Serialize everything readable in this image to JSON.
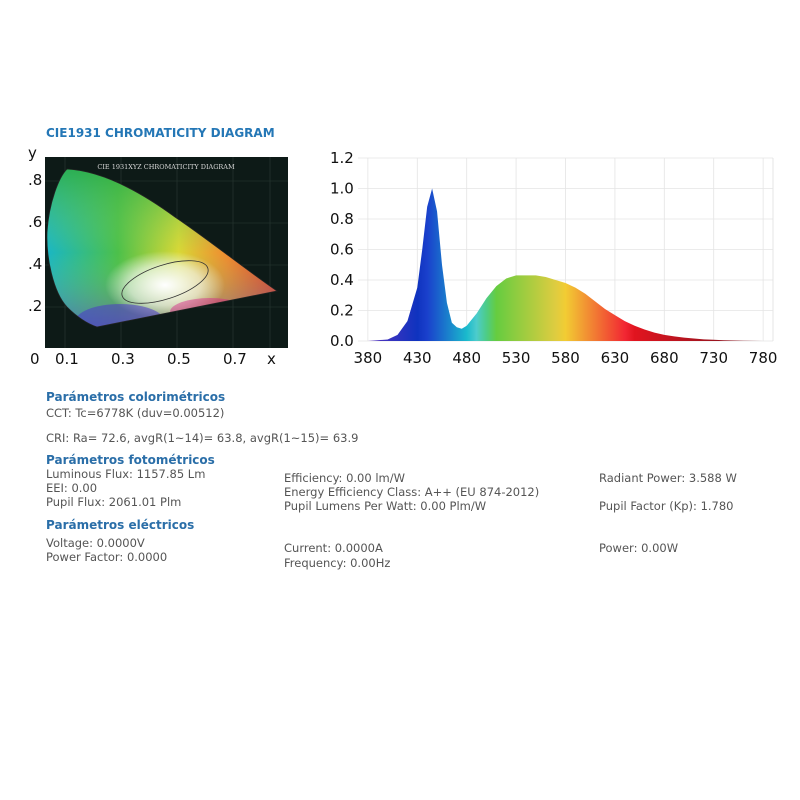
{
  "cie": {
    "title": "CIE1931 CHROMATICITY DIAGRAM",
    "inner_title": "CIE 1931XYZ CHROMATICITY DIAGRAM",
    "y_label": "y",
    "x_label": "x",
    "y_ticks": [
      ".8",
      ".6",
      ".4",
      ".2"
    ],
    "x_ticks": [
      "0",
      "0.1",
      "0.3",
      "0.5",
      "0.7"
    ],
    "bg_color": "#0d1a17"
  },
  "chart_data": {
    "type": "area",
    "title": "",
    "xlabel": "",
    "ylabel": "",
    "xlim": [
      370,
      790
    ],
    "ylim": [
      0,
      1.2
    ],
    "x_ticks": [
      380,
      430,
      480,
      530,
      580,
      630,
      680,
      730,
      780
    ],
    "y_ticks": [
      "0.0",
      "0.2",
      "0.4",
      "0.6",
      "0.8",
      "1.0",
      "1.2"
    ],
    "grid": true,
    "x": [
      380,
      400,
      410,
      420,
      430,
      435,
      440,
      445,
      450,
      455,
      460,
      465,
      470,
      475,
      480,
      485,
      490,
      500,
      510,
      520,
      530,
      540,
      550,
      560,
      570,
      580,
      590,
      600,
      610,
      620,
      630,
      640,
      650,
      660,
      670,
      680,
      690,
      700,
      710,
      720,
      730,
      740,
      750,
      760,
      770,
      780
    ],
    "y": [
      0.0,
      0.01,
      0.04,
      0.13,
      0.35,
      0.6,
      0.88,
      1.0,
      0.85,
      0.5,
      0.25,
      0.12,
      0.09,
      0.08,
      0.1,
      0.14,
      0.18,
      0.28,
      0.36,
      0.41,
      0.43,
      0.43,
      0.43,
      0.42,
      0.4,
      0.38,
      0.35,
      0.31,
      0.26,
      0.21,
      0.17,
      0.13,
      0.1,
      0.075,
      0.055,
      0.04,
      0.03,
      0.022,
      0.016,
      0.011,
      0.008,
      0.005,
      0.003,
      0.002,
      0.001,
      0.0
    ]
  },
  "colorimetric": {
    "heading": "Parámetros colorimétricos",
    "cct": "CCT: Tc=6778K (duv=0.00512)",
    "cri": "CRI: Ra= 72.6, avgR(1~14)= 63.8, avgR(1~15)= 63.9"
  },
  "photometric": {
    "heading": "Parámetros fotométricos",
    "luminous_flux": "Luminous Flux: 1157.85 Lm",
    "eei": "EEI: 0.00",
    "pupil_flux": "Pupil Flux: 2061.01 Plm",
    "efficiency": "Efficiency: 0.00 lm/W",
    "energy_class": "Energy Efficiency Class: A++ (EU 874-2012)",
    "pupil_lumens": "Pupil Lumens Per Watt: 0.00 Plm/W",
    "radiant_power": "Radiant Power: 3.588 W",
    "pupil_factor": "Pupil Factor (Kp): 1.780"
  },
  "electrical": {
    "heading": "Parámetros eléctricos",
    "voltage": "Voltage: 0.0000V",
    "power_factor": "Power Factor: 0.0000",
    "current": "Current: 0.0000A",
    "frequency": "Frequency: 0.00Hz",
    "power": "Power: 0.00W"
  }
}
